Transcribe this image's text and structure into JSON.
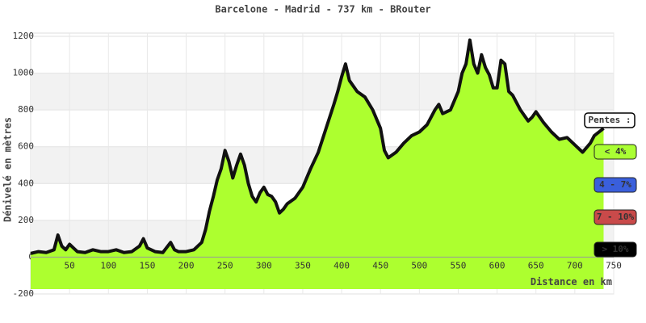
{
  "chart_data": {
    "type": "area",
    "title": "Barcelone - Madrid - 737 km - BRouter",
    "x_label": "Distance en km",
    "y_label": "Dénivelé en mètres",
    "xlim": [
      0,
      750
    ],
    "ylim": [
      -200,
      1200
    ],
    "xticks": [
      50,
      100,
      150,
      200,
      250,
      300,
      350,
      400,
      450,
      500,
      550,
      600,
      650,
      700,
      750
    ],
    "yticks": [
      -200,
      0,
      200,
      400,
      600,
      800,
      1000,
      1200
    ],
    "grid": true,
    "x": [
      0,
      10,
      20,
      30,
      35,
      40,
      45,
      50,
      55,
      60,
      70,
      80,
      90,
      100,
      110,
      120,
      130,
      140,
      145,
      150,
      160,
      170,
      180,
      185,
      190,
      200,
      210,
      220,
      225,
      230,
      235,
      240,
      245,
      250,
      255,
      260,
      265,
      270,
      275,
      280,
      285,
      290,
      295,
      300,
      305,
      310,
      315,
      320,
      325,
      330,
      340,
      350,
      360,
      370,
      380,
      390,
      395,
      400,
      405,
      410,
      420,
      430,
      440,
      450,
      455,
      460,
      470,
      480,
      490,
      500,
      510,
      520,
      525,
      530,
      540,
      550,
      555,
      560,
      565,
      570,
      575,
      580,
      585,
      590,
      595,
      600,
      605,
      610,
      615,
      620,
      630,
      640,
      645,
      650,
      655,
      660,
      670,
      680,
      690,
      700,
      710,
      720,
      725,
      737
    ],
    "series": [
      {
        "name": "Dénivelé",
        "color": "#adff2f",
        "line_color": "#111111",
        "values": [
          20,
          30,
          25,
          40,
          120,
          60,
          40,
          70,
          50,
          30,
          25,
          40,
          30,
          30,
          40,
          25,
          30,
          60,
          100,
          50,
          30,
          25,
          80,
          40,
          30,
          30,
          40,
          80,
          150,
          250,
          330,
          420,
          480,
          580,
          520,
          430,
          500,
          560,
          500,
          400,
          330,
          300,
          350,
          380,
          340,
          330,
          300,
          240,
          260,
          290,
          320,
          380,
          480,
          570,
          700,
          830,
          900,
          980,
          1050,
          960,
          900,
          870,
          800,
          700,
          580,
          540,
          570,
          620,
          660,
          680,
          720,
          800,
          830,
          780,
          800,
          900,
          1000,
          1050,
          1180,
          1050,
          1000,
          1100,
          1030,
          990,
          920,
          920,
          1070,
          1050,
          900,
          880,
          800,
          740,
          760,
          790,
          760,
          730,
          680,
          640,
          650,
          610,
          570,
          620,
          660,
          700
        ]
      }
    ],
    "legend": {
      "title": "Pentes :",
      "items": [
        {
          "label": "< 4%",
          "color": "#aaff33"
        },
        {
          "label": "4 - 7%",
          "color": "#3a5fdc"
        },
        {
          "label": "7 - 10%",
          "color": "#c94a4a"
        },
        {
          "label": "> 10%",
          "color": "#000000"
        }
      ]
    }
  }
}
